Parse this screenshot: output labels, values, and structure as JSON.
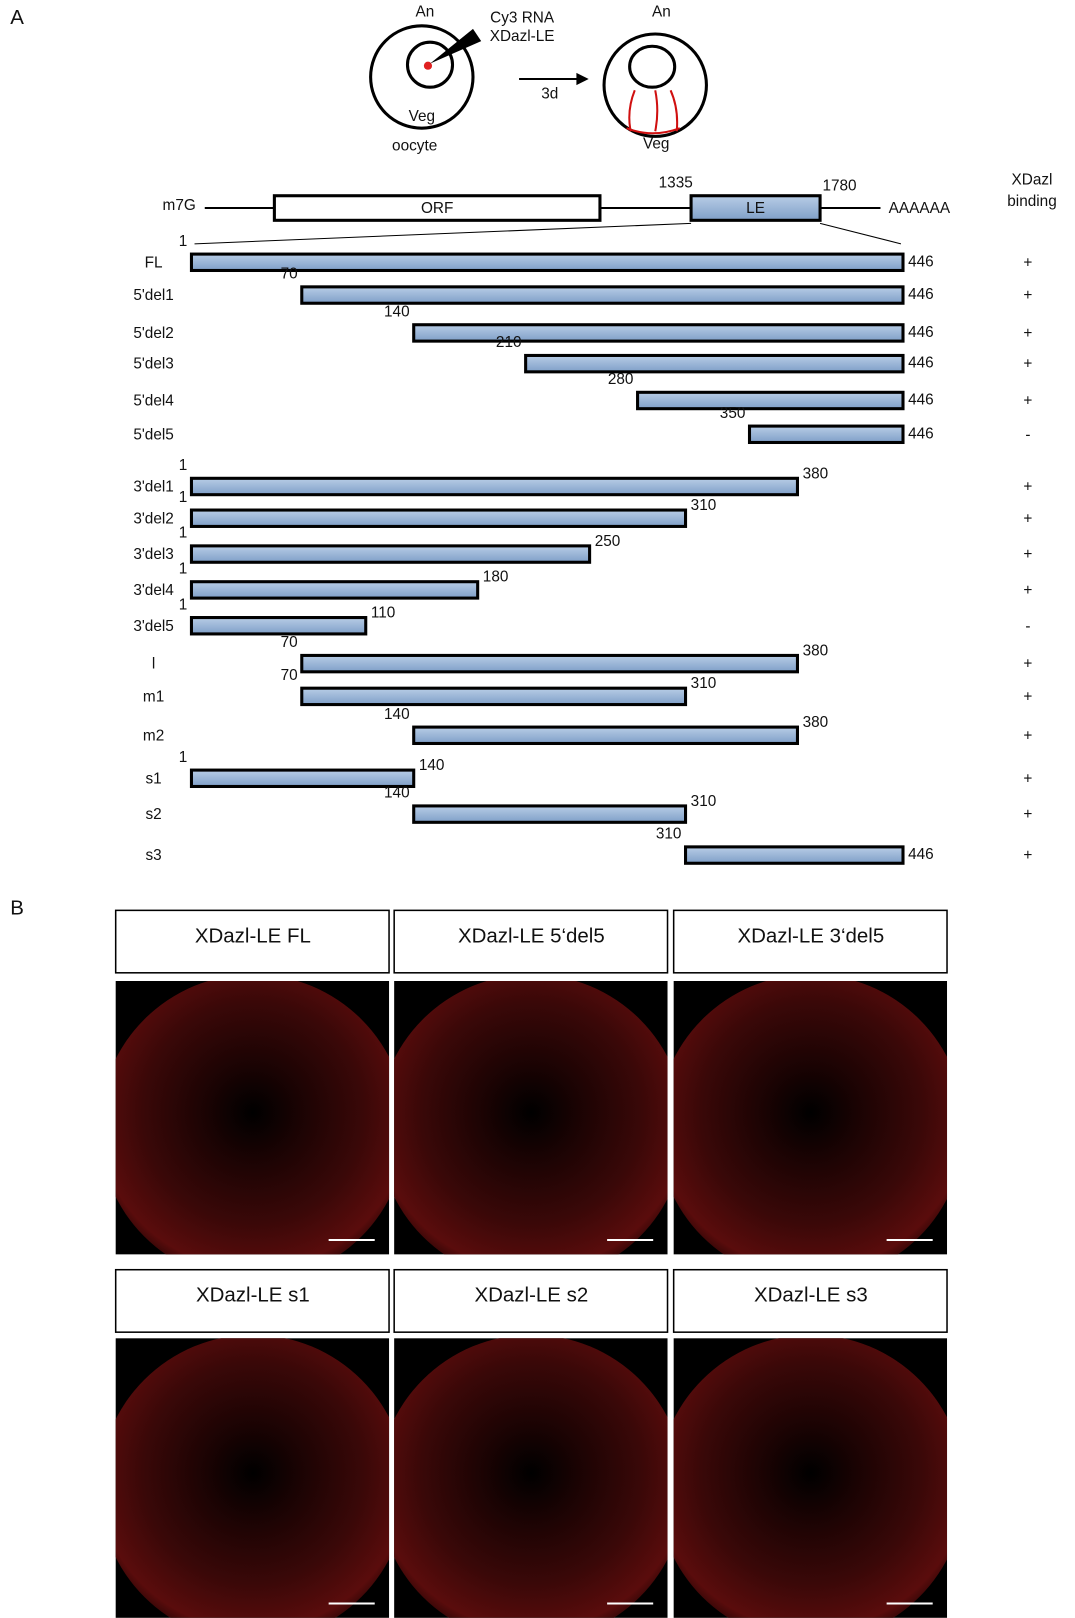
{
  "panel_a": {
    "letter": "A",
    "schematic": {
      "left_top": "An",
      "probe_1": "Cy3 RNA",
      "probe_2": "XDazl-LE",
      "left_bottom": "Veg",
      "left_caption": "oocyte",
      "arrow": "3d",
      "right_top": "An",
      "right_bottom": "Veg"
    },
    "mrna": {
      "cap": "m7G",
      "orf": "ORF",
      "le": "LE",
      "le_start": 1335,
      "le_end": 1780,
      "tail": "AAAAAA"
    },
    "binding_header": [
      "XDazl",
      "binding"
    ],
    "constructs": [
      {
        "name": "FL",
        "start": 1,
        "end": 446,
        "binding": "+"
      },
      {
        "name": "5'del1",
        "start": 70,
        "end": 446,
        "binding": "+"
      },
      {
        "name": "5'del2",
        "start": 140,
        "end": 446,
        "binding": "+"
      },
      {
        "name": "5'del3",
        "start": 210,
        "end": 446,
        "binding": "+"
      },
      {
        "name": "5'del4",
        "start": 280,
        "end": 446,
        "binding": "+"
      },
      {
        "name": "5'del5",
        "start": 350,
        "end": 446,
        "binding": "-"
      },
      {
        "name": "3'del1",
        "start": 1,
        "end": 380,
        "binding": "+"
      },
      {
        "name": "3'del2",
        "start": 1,
        "end": 310,
        "binding": "+"
      },
      {
        "name": "3'del3",
        "start": 1,
        "end": 250,
        "binding": "+"
      },
      {
        "name": "3'del4",
        "start": 1,
        "end": 180,
        "binding": "+"
      },
      {
        "name": "3'del5",
        "start": 1,
        "end": 110,
        "binding": "-"
      },
      {
        "name": "l",
        "start": 70,
        "end": 380,
        "binding": "+"
      },
      {
        "name": "m1",
        "start": 70,
        "end": 310,
        "binding": "+"
      },
      {
        "name": "m2",
        "start": 140,
        "end": 380,
        "binding": "+"
      },
      {
        "name": "s1",
        "start": 1,
        "end": 140,
        "binding": "+"
      },
      {
        "name": "s2",
        "start": 140,
        "end": 310,
        "binding": "+"
      },
      {
        "name": "s3",
        "start": 310,
        "end": 446,
        "binding": "+"
      }
    ]
  },
  "panel_b": {
    "letter": "B",
    "panels": [
      {
        "label": "XDazl-LE FL"
      },
      {
        "label": "XDazl-LE 5‘del5"
      },
      {
        "label": "XDazl-LE 3‘del5"
      },
      {
        "label": "XDazl-LE s1"
      },
      {
        "label": "XDazl-LE s2"
      },
      {
        "label": "XDazl-LE s3"
      }
    ]
  }
}
